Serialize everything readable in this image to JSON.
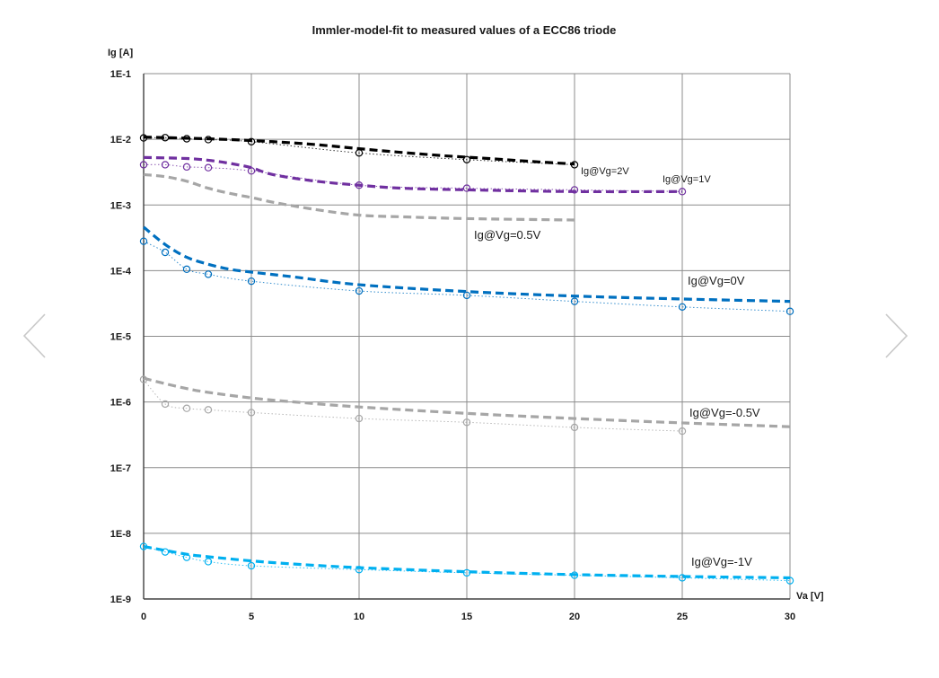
{
  "chart_data": {
    "type": "line",
    "title": "Immler-model-fit to measured values of a ECC86 triode",
    "xlabel": "Va [V]",
    "ylabel": "Ig [A]",
    "xlim": [
      0,
      30
    ],
    "ylim": [
      1e-09,
      0.1
    ],
    "yscale": "log",
    "grid": true,
    "x_ticks": [
      "0",
      "5",
      "10",
      "15",
      "20",
      "25",
      "30"
    ],
    "y_ticks": [
      "1E-9",
      "1E-8",
      "1E-7",
      "1E-6",
      "1E-5",
      "1E-4",
      "1E-3",
      "1E-2",
      "1E-1"
    ],
    "series": [
      {
        "name": "Ig@Vg=2V",
        "color": "#000000",
        "measured": {
          "x": [
            0,
            1,
            2,
            3,
            5,
            10,
            15,
            20
          ],
          "y": [
            0.0105,
            0.0106,
            0.0102,
            0.0099,
            0.0092,
            0.0062,
            0.0049,
            0.0041
          ]
        },
        "fit": {
          "x": [
            0,
            2,
            4,
            6,
            8,
            10,
            12,
            14,
            16,
            18,
            20
          ],
          "y": [
            0.0108,
            0.0104,
            0.0099,
            0.0092,
            0.0083,
            0.0072,
            0.0063,
            0.0056,
            0.0051,
            0.0046,
            0.0042
          ]
        }
      },
      {
        "name": "Ig@Vg=1V",
        "color": "#7030a0",
        "measured": {
          "x": [
            0,
            1,
            2,
            3,
            5,
            10,
            15,
            20,
            25
          ],
          "y": [
            0.0041,
            0.0041,
            0.0038,
            0.0037,
            0.0033,
            0.002,
            0.0018,
            0.0017,
            0.0016
          ]
        },
        "fit": {
          "x": [
            0,
            2,
            3,
            4,
            5,
            6,
            8,
            10,
            12,
            15,
            20,
            25
          ],
          "y": [
            0.0053,
            0.0051,
            0.0048,
            0.0043,
            0.0037,
            0.0029,
            0.0023,
            0.002,
            0.0018,
            0.0017,
            0.0016,
            0.0016
          ]
        }
      },
      {
        "name": "Ig@Vg=0.5V",
        "color": "#a6a6a6",
        "fit": {
          "x": [
            0,
            1,
            2,
            3,
            4,
            5,
            6,
            8,
            10,
            12,
            15,
            20
          ],
          "y": [
            0.0029,
            0.0027,
            0.0023,
            0.0018,
            0.0015,
            0.0013,
            0.0011,
            0.00085,
            0.0007,
            0.00066,
            0.00062,
            0.00059
          ]
        }
      },
      {
        "name": "Ig@Vg=0V",
        "color": "#0070c0",
        "measured": {
          "x": [
            0,
            1,
            2,
            3,
            5,
            10,
            15,
            20,
            25,
            30
          ],
          "y": [
            0.00028,
            0.00019,
            0.000105,
            8.8e-05,
            6.9e-05,
            4.9e-05,
            4.2e-05,
            3.4e-05,
            2.8e-05,
            2.4e-05
          ]
        },
        "fit": {
          "x": [
            0,
            1,
            2,
            3,
            4,
            5,
            7,
            10,
            15,
            20,
            25,
            30
          ],
          "y": [
            0.00046,
            0.00025,
            0.00016,
            0.000125,
            0.000105,
            9.5e-05,
            8e-05,
            6.1e-05,
            4.8e-05,
            4.1e-05,
            3.7e-05,
            3.4e-05
          ]
        }
      },
      {
        "name": "Ig@Vg=-0.5V",
        "color": "#a6a6a6",
        "measured": {
          "x": [
            0,
            1,
            2,
            3,
            5,
            10,
            15,
            20,
            25
          ],
          "y": [
            2.2e-06,
            9.3e-07,
            8e-07,
            7.6e-07,
            6.9e-07,
            5.6e-07,
            4.9e-07,
            4.1e-07,
            3.6e-07
          ]
        },
        "fit": {
          "x": [
            0,
            1,
            2,
            3,
            5,
            7,
            10,
            15,
            20,
            25,
            30
          ],
          "y": [
            2.3e-06,
            1.9e-06,
            1.6e-06,
            1.4e-06,
            1.15e-06,
            1e-06,
            8.4e-07,
            6.7e-07,
            5.6e-07,
            4.8e-07,
            4.2e-07
          ]
        }
      },
      {
        "name": "Ig@Vg=-1V",
        "color": "#00b0f0",
        "measured": {
          "x": [
            0,
            1,
            2,
            3,
            5,
            10,
            15,
            20,
            25,
            30
          ],
          "y": [
            6.3e-09,
            5.2e-09,
            4.3e-09,
            3.7e-09,
            3.2e-09,
            2.8e-09,
            2.5e-09,
            2.3e-09,
            2.1e-09,
            1.9e-09
          ]
        },
        "fit": {
          "x": [
            0,
            2,
            3,
            5,
            7,
            10,
            15,
            20,
            25,
            30
          ],
          "y": [
            6.3e-09,
            4.8e-09,
            4.4e-09,
            3.8e-09,
            3.4e-09,
            3e-09,
            2.6e-09,
            2.35e-09,
            2.2e-09,
            2.1e-09
          ]
        }
      }
    ]
  },
  "nav": {
    "prev_glyph": "‹",
    "next_glyph": "›"
  }
}
